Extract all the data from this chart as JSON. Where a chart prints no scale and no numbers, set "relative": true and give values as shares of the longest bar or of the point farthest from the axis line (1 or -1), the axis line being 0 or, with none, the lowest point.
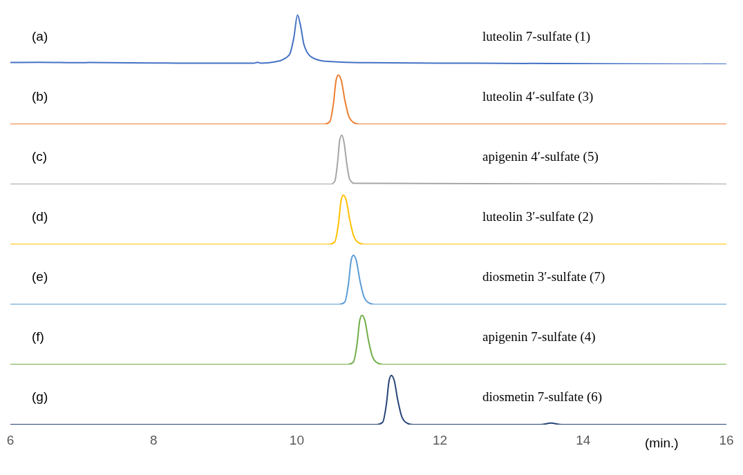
{
  "chart_data": [
    {
      "type": "line",
      "relative": true,
      "xlim": [
        6,
        16
      ],
      "tick_labels": false,
      "marker": "none",
      "line_style": "solid",
      "annotations": [
        "(a)",
        "luteolin 7-sulfate (1)"
      ],
      "x": [
        6,
        6.4,
        7,
        7.1,
        8,
        8.6,
        9.4,
        9.45,
        9.5,
        9.7,
        9.8,
        9.9,
        9.96,
        10.01,
        10.05,
        10.1,
        10.2,
        10.4,
        11,
        12.5,
        16
      ],
      "series": [
        {
          "color": "#4472c4",
          "values": [
            0.034,
            0.04,
            0.03,
            0.035,
            0.025,
            0.02,
            0.02,
            0.04,
            0.02,
            0.05,
            0.09,
            0.2,
            0.55,
            1,
            0.8,
            0.4,
            0.15,
            0.06,
            0.03,
            0.02,
            0
          ]
        }
      ]
    },
    {
      "type": "line",
      "relative": true,
      "xlim": [
        6,
        16
      ],
      "tick_labels": false,
      "marker": "none",
      "line_style": "solid",
      "annotations": [
        "(b)",
        "luteolin 4′-sulfate (3)"
      ],
      "x": [
        6,
        10.38,
        10.46,
        10.51,
        10.55,
        10.58,
        10.62,
        10.67,
        10.73,
        10.8,
        10.88,
        16
      ],
      "series": [
        {
          "color": "#ed7d31",
          "values": [
            0,
            0,
            0.05,
            0.4,
            0.9,
            1,
            0.9,
            0.5,
            0.15,
            0.03,
            0,
            0
          ]
        }
      ]
    },
    {
      "type": "line",
      "relative": true,
      "xlim": [
        6,
        16
      ],
      "tick_labels": false,
      "marker": "none",
      "line_style": "solid",
      "annotations": [
        "(c)",
        "apigenin 4′-sulfate (5)"
      ],
      "x": [
        6,
        10.47,
        10.53,
        10.57,
        10.6,
        10.63,
        10.66,
        10.7,
        10.74,
        10.8,
        10.95,
        16
      ],
      "series": [
        {
          "color": "#a5a5a5",
          "values": [
            0,
            0,
            0.06,
            0.45,
            0.9,
            1,
            0.85,
            0.4,
            0.1,
            0.02,
            0.02,
            0
          ]
        }
      ]
    },
    {
      "type": "line",
      "relative": true,
      "xlim": [
        6,
        16
      ],
      "tick_labels": false,
      "marker": "none",
      "line_style": "solid",
      "annotations": [
        "(d)",
        "luteolin 3′-sulfate (2)"
      ],
      "x": [
        6,
        10.45,
        10.53,
        10.58,
        10.62,
        10.65,
        10.69,
        10.74,
        10.8,
        10.87,
        10.95,
        16
      ],
      "series": [
        {
          "color": "#ffc000",
          "values": [
            0,
            0,
            0.05,
            0.4,
            0.9,
            1,
            0.9,
            0.5,
            0.15,
            0.03,
            0,
            0
          ]
        }
      ]
    },
    {
      "type": "line",
      "relative": true,
      "xlim": [
        6,
        16
      ],
      "tick_labels": false,
      "marker": "none",
      "line_style": "solid",
      "annotations": [
        "(e)",
        "diosmetin 3′-sulfate (7)"
      ],
      "x": [
        6,
        10.59,
        10.67,
        10.72,
        10.76,
        10.79,
        10.83,
        10.88,
        10.94,
        11.01,
        11.09,
        16
      ],
      "series": [
        {
          "color": "#5b9bd5",
          "values": [
            0,
            0,
            0.05,
            0.4,
            0.9,
            1,
            0.9,
            0.5,
            0.15,
            0.03,
            0,
            0
          ]
        }
      ]
    },
    {
      "type": "line",
      "relative": true,
      "xlim": [
        6,
        16
      ],
      "tick_labels": false,
      "marker": "none",
      "line_style": "solid",
      "annotations": [
        "(f)",
        "apigenin 7-sulfate (4)"
      ],
      "x": [
        6,
        10.71,
        10.79,
        10.84,
        10.88,
        10.91,
        10.95,
        11.0,
        11.06,
        11.13,
        11.21,
        16
      ],
      "series": [
        {
          "color": "#70ad47",
          "values": [
            0,
            0,
            0.05,
            0.4,
            0.9,
            1,
            0.9,
            0.5,
            0.15,
            0.03,
            0,
            0
          ]
        }
      ]
    },
    {
      "type": "line",
      "relative": true,
      "xlim": [
        6,
        16
      ],
      "xticks": [
        6,
        8,
        10,
        12,
        14,
        16
      ],
      "xlabel": "(min.)",
      "tick_labels": "x",
      "marker": "none",
      "line_style": "solid",
      "annotations": [
        "(g)",
        "diosmetin 7-sulfate (6)"
      ],
      "x": [
        6,
        11.12,
        11.2,
        11.25,
        11.29,
        11.32,
        11.36,
        11.41,
        11.47,
        11.54,
        11.62,
        13.4,
        13.55,
        13.7,
        16
      ],
      "series": [
        {
          "color": "#264478",
          "values": [
            0,
            0,
            0.05,
            0.4,
            0.9,
            1,
            0.9,
            0.5,
            0.15,
            0.03,
            0,
            0,
            0.03,
            0,
            0
          ]
        }
      ]
    }
  ]
}
